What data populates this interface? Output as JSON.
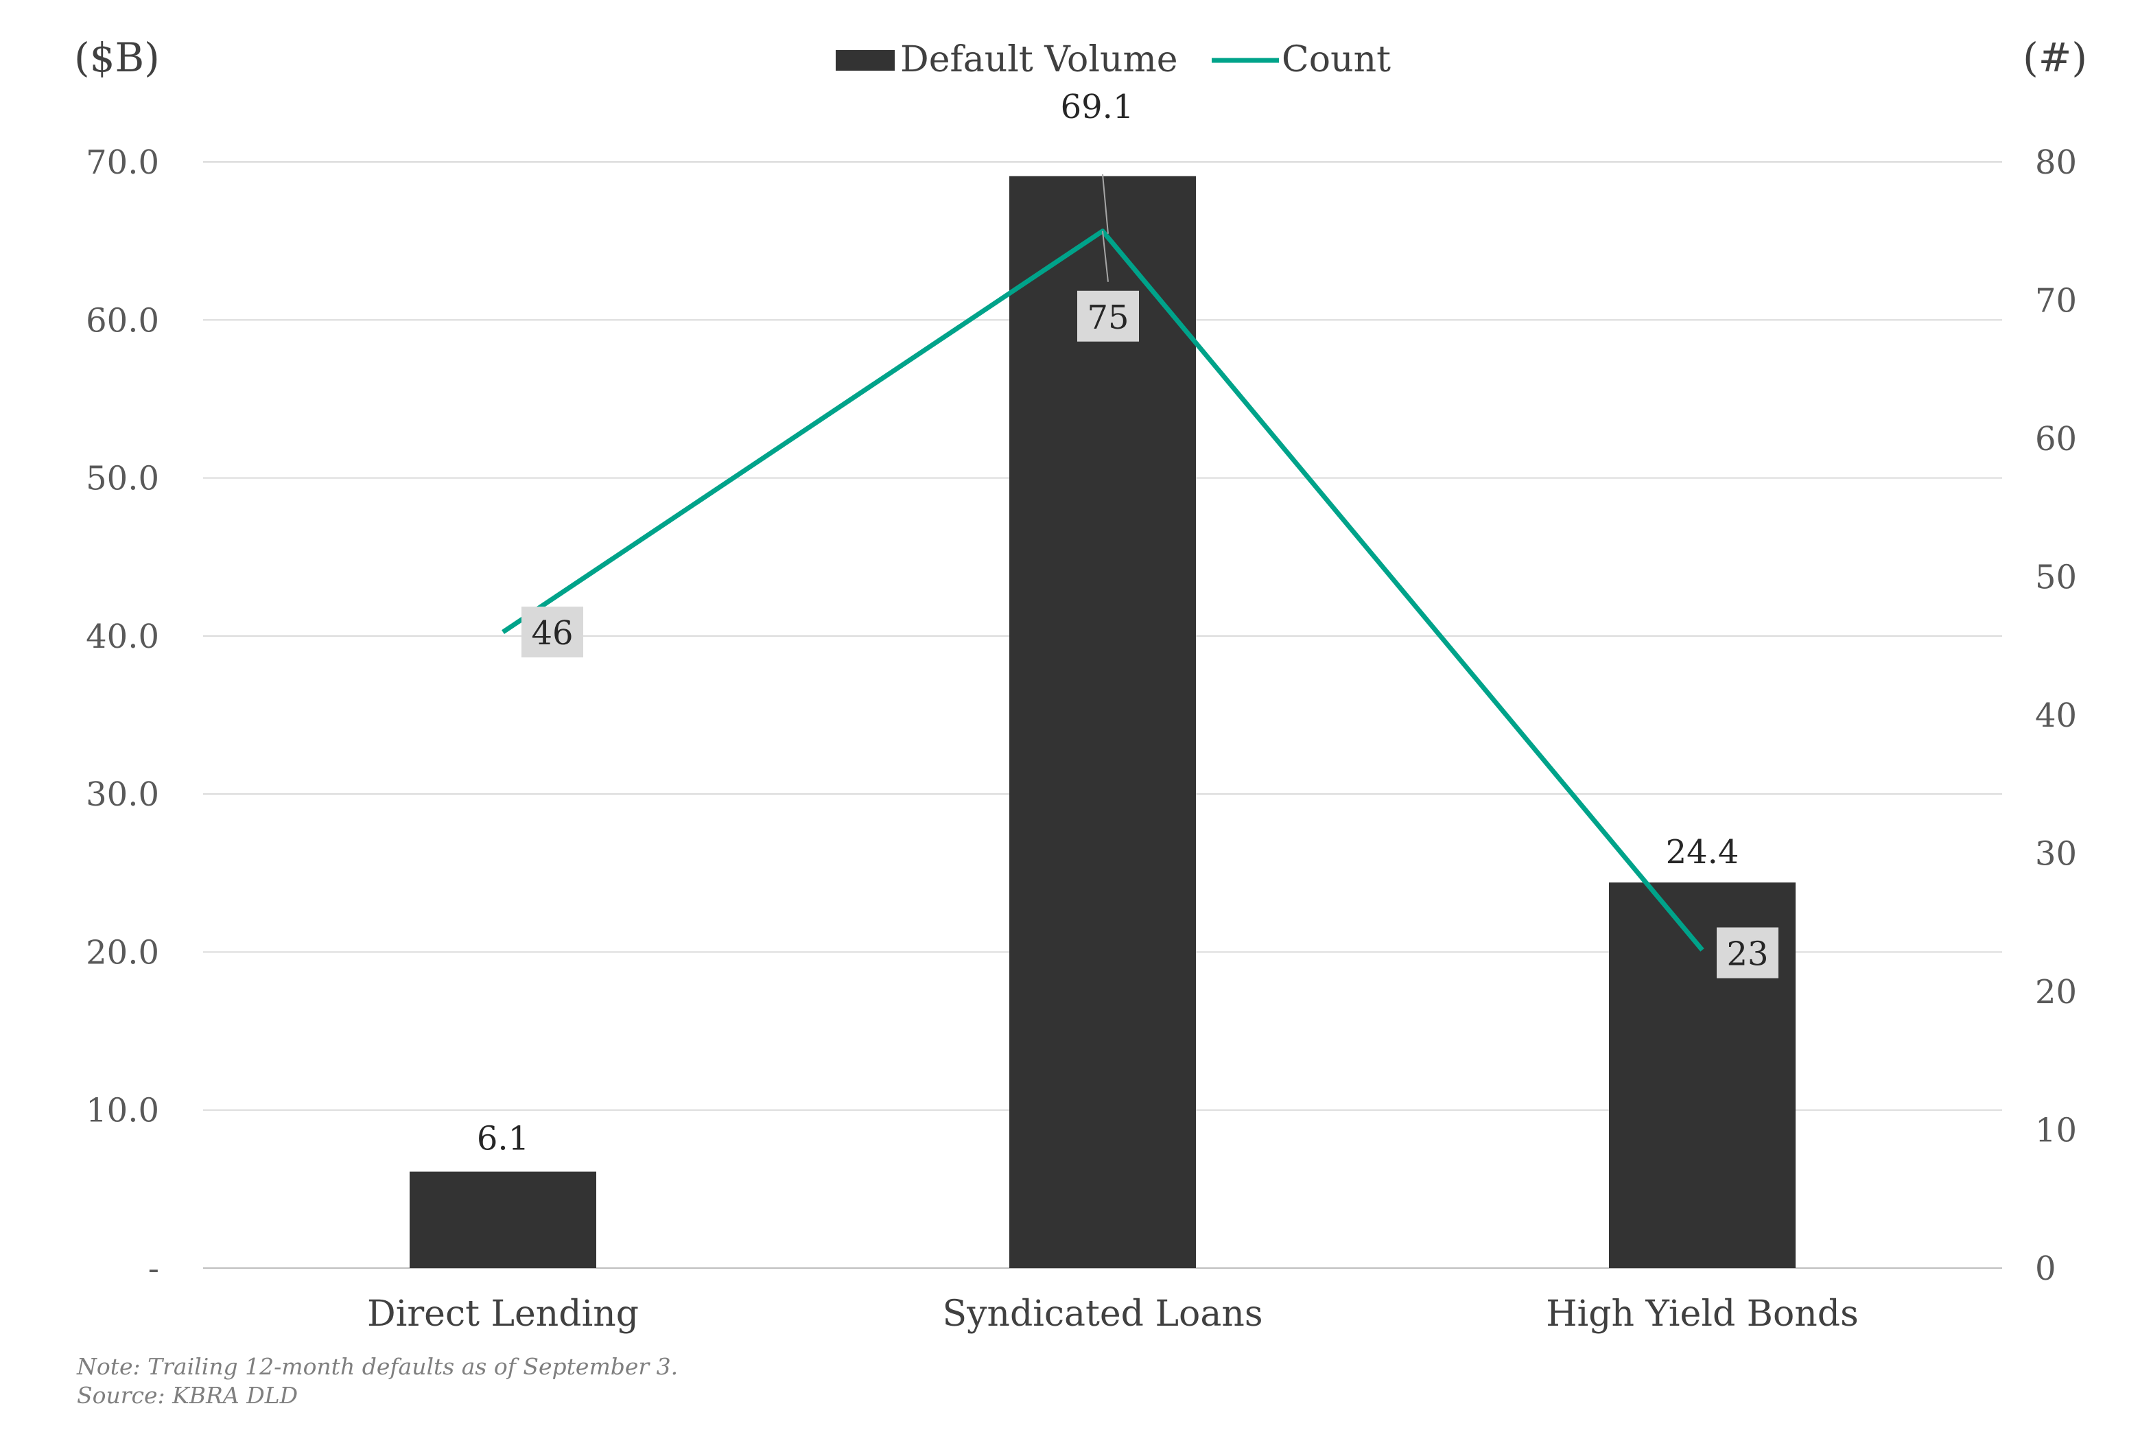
{
  "chart_data": {
    "type": "bar",
    "categories": [
      "Direct Lending",
      "Syndicated Loans",
      "High Yield Bonds"
    ],
    "series": [
      {
        "name": "Default Volume",
        "type": "bar",
        "axis": "left",
        "values": [
          6.1,
          69.1,
          24.4
        ],
        "labels": [
          "6.1",
          "69.1",
          "24.4"
        ],
        "color": "#333333"
      },
      {
        "name": "Count",
        "type": "line",
        "axis": "right",
        "values": [
          46,
          75,
          23
        ],
        "labels": [
          "46",
          "75",
          "23"
        ],
        "color": "#00A38A"
      }
    ],
    "y_left": {
      "unit": "($B)",
      "ylim": [
        0,
        70
      ],
      "ticks": [
        0,
        10,
        20,
        30,
        40,
        50,
        60,
        70
      ],
      "tick_labels": [
        "-",
        "10.0",
        "20.0",
        "30.0",
        "40.0",
        "50.0",
        "60.0",
        "70.0"
      ]
    },
    "y_right": {
      "unit": "(#)",
      "ylim": [
        0,
        80
      ],
      "ticks": [
        0,
        10,
        20,
        30,
        40,
        50,
        60,
        70,
        80
      ],
      "tick_labels": [
        "0",
        "10",
        "20",
        "30",
        "40",
        "50",
        "60",
        "70",
        "80"
      ]
    },
    "grid": true,
    "legend_position": "top-center"
  },
  "footer": {
    "note": "Note: Trailing 12-month defaults as of September 3.",
    "source": "Source: KBRA DLD"
  }
}
